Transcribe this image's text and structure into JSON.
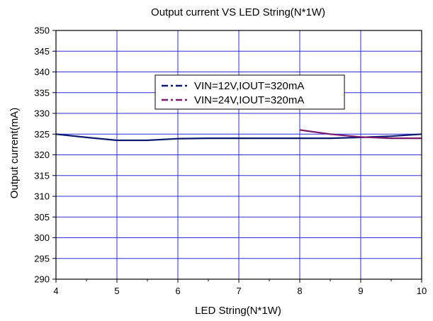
{
  "chart_data": {
    "type": "line",
    "title": "Output current VS LED String(N*1W)",
    "xlabel": "LED String(N*1W)",
    "ylabel": "Output current(mA)",
    "xlim": [
      4,
      10
    ],
    "ylim": [
      290,
      350
    ],
    "x_ticks": [
      4,
      5,
      6,
      7,
      8,
      9,
      10
    ],
    "y_ticks": [
      290,
      295,
      300,
      305,
      310,
      315,
      320,
      325,
      330,
      335,
      340,
      345,
      350
    ],
    "grid": true,
    "legend_position": "top-center",
    "series": [
      {
        "name": "VIN=12V,IOUT=320mA",
        "color": "#0a1a6e",
        "dash": "dash-dot",
        "points": [
          [
            4,
            325
          ],
          [
            4.5,
            324.2
          ],
          [
            5,
            323.5
          ],
          [
            5.5,
            323.5
          ],
          [
            6,
            323.9
          ],
          [
            6.5,
            324
          ],
          [
            7,
            324
          ],
          [
            7.5,
            324
          ],
          [
            8,
            324
          ],
          [
            8.5,
            324
          ],
          [
            9,
            324.2
          ],
          [
            9.5,
            324.5
          ],
          [
            10,
            325
          ]
        ]
      },
      {
        "name": "VIN=24V,IOUT=320mA",
        "color": "#7a1a6e",
        "dash": "dash-dot",
        "points": [
          [
            8,
            326
          ],
          [
            8.5,
            325
          ],
          [
            9,
            324.3
          ],
          [
            9.5,
            324
          ],
          [
            10,
            324
          ]
        ]
      }
    ]
  }
}
